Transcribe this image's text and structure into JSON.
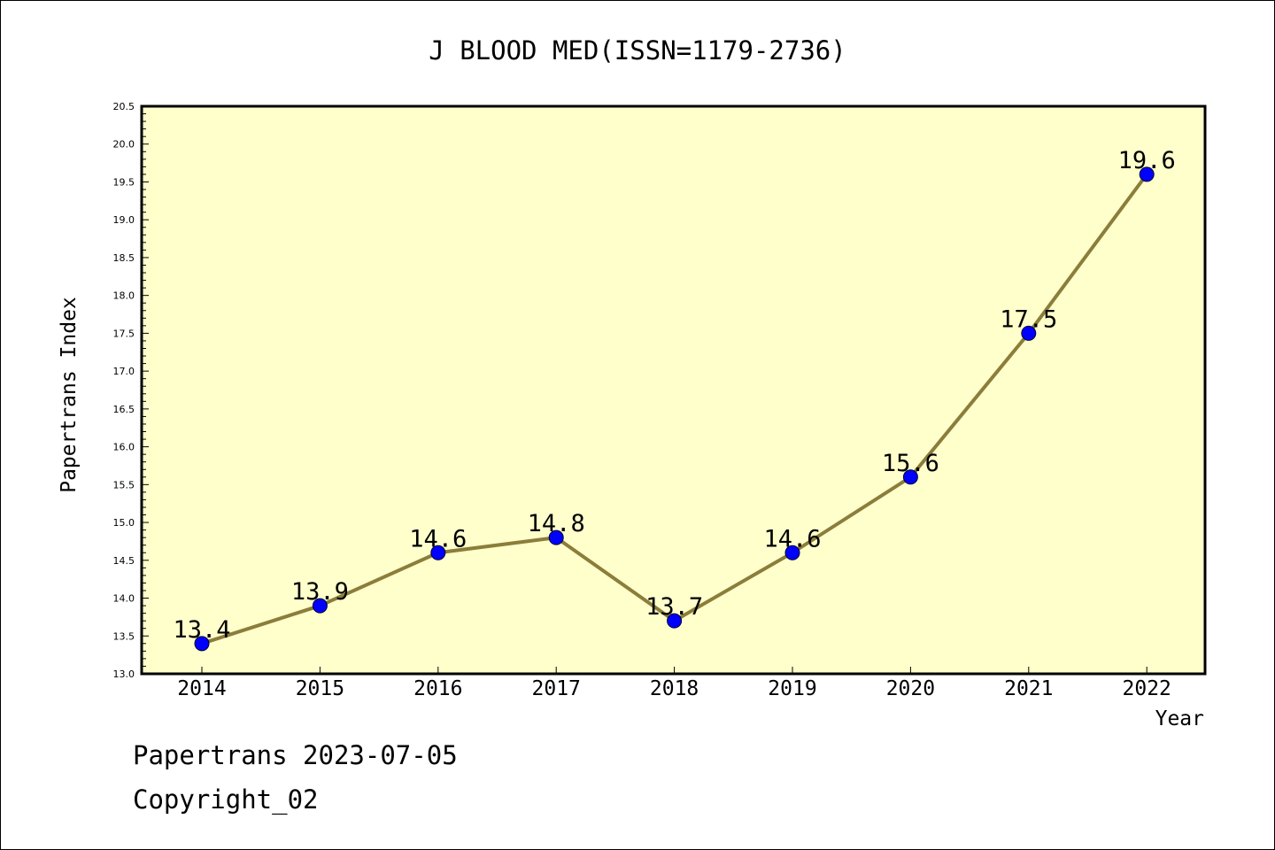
{
  "footer": {
    "line1": "Papertrans 2023-07-05",
    "line2": "Copyright_02"
  },
  "colors": {
    "plot_background": "#ffffcc",
    "line": "#8b7d3a",
    "marker": "#0000ff"
  },
  "chart_data": {
    "type": "line",
    "title": "J BLOOD MED(ISSN=1179-2736)",
    "xlabel": "Year",
    "ylabel": "Papertrans Index",
    "categories": [
      "2014",
      "2015",
      "2016",
      "2017",
      "2018",
      "2019",
      "2020",
      "2021",
      "2022"
    ],
    "values": [
      13.4,
      13.9,
      14.6,
      14.8,
      13.7,
      14.6,
      15.6,
      17.5,
      19.6
    ],
    "data_labels": [
      "13.4",
      "13.9",
      "14.6",
      "14.8",
      "13.7",
      "14.6",
      "15.6",
      "17.5",
      "19.6"
    ],
    "ylim": [
      13.0,
      20.5
    ],
    "yticks": [
      "13.0",
      "13.5",
      "14.0",
      "14.5",
      "15.0",
      "15.5",
      "16.0",
      "16.5",
      "17.0",
      "17.5",
      "18.0",
      "18.5",
      "19.0",
      "19.5",
      "20.0",
      "20.5"
    ],
    "grid": false,
    "legend": "none"
  }
}
